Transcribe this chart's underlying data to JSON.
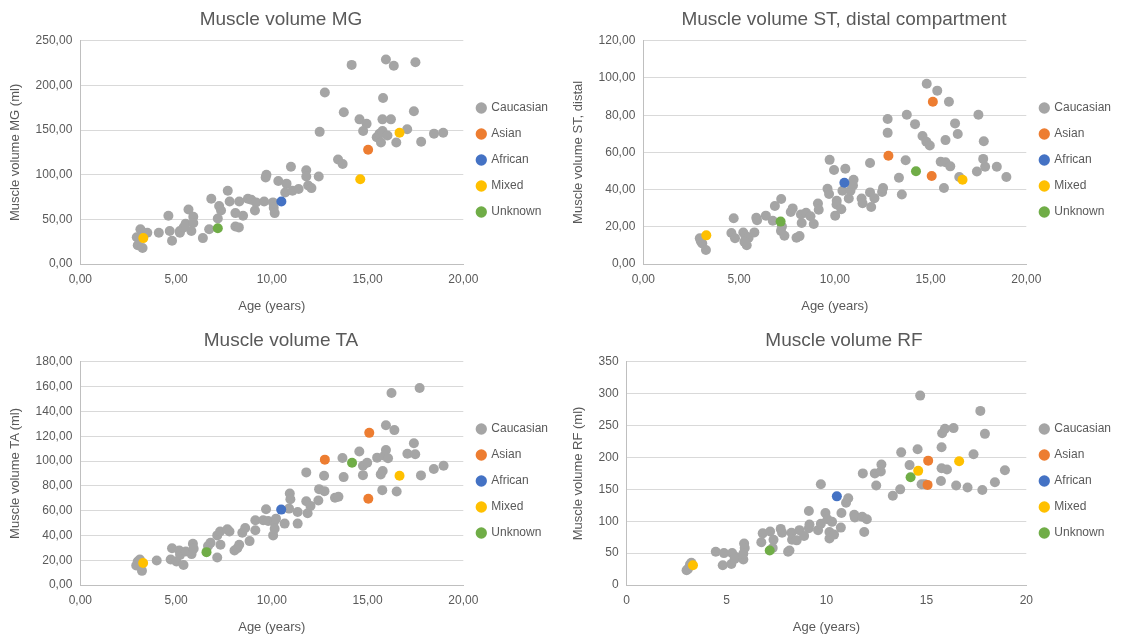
{
  "chart_data": [
    {
      "type": "scatter",
      "title": "Muscle volume MG",
      "xlabel": "Age (years)",
      "ylabel": "Muscle volume MG (ml)",
      "xlim": [
        0,
        20
      ],
      "xticks": [
        {
          "value": 0,
          "label": "0,00"
        },
        {
          "value": 5,
          "label": "5,00"
        },
        {
          "value": 10,
          "label": "10,00"
        },
        {
          "value": 15,
          "label": "15,00"
        },
        {
          "value": 20,
          "label": "20,00"
        }
      ],
      "ylim": [
        0,
        250
      ],
      "yticks": [
        {
          "value": 0,
          "label": "0,00"
        },
        {
          "value": 50,
          "label": "50,00"
        },
        {
          "value": 100,
          "label": "100,00"
        },
        {
          "value": 150,
          "label": "150,00"
        },
        {
          "value": 200,
          "label": "200,00"
        },
        {
          "value": 250,
          "label": "250,00"
        }
      ],
      "grid": "y",
      "legend": "right",
      "marker": "circle",
      "series": [
        {
          "name": "Caucasian",
          "color": "#a5a5a5",
          "x": [
            3.14,
            2.95,
            3.0,
            3.25,
            3.5,
            4.1,
            4.6,
            4.67,
            4.79,
            5.2,
            5.2,
            5.4,
            5.5,
            5.65,
            5.9,
            5.9,
            5.8,
            6.4,
            6.84,
            6.73,
            7.18,
            7.25,
            7.35,
            7.7,
            7.8,
            8.1,
            8.1,
            8.28,
            8.3,
            8.5,
            8.75,
            8.93,
            9.12,
            9.18,
            9.6,
            9.72,
            9.68,
            10.06,
            10.1,
            10.15,
            10.34,
            10.77,
            10.7,
            11.0,
            11.08,
            11.4,
            11.8,
            11.8,
            11.9,
            12.07,
            12.45,
            12.5,
            12.77,
            13.46,
            13.7,
            13.76,
            14.17,
            14.58,
            14.77,
            14.95,
            15.48,
            15.63,
            15.7,
            15.78,
            15.81,
            15.78,
            15.96,
            16.04,
            16.22,
            16.37,
            16.5,
            17.07,
            17.42,
            17.5,
            17.8,
            18.47,
            18.95
          ],
          "values": [
            39,
            30,
            21,
            18,
            35,
            35,
            54,
            37,
            26,
            37,
            35,
            41,
            45,
            61,
            53,
            46,
            37,
            29,
            73,
            39,
            51,
            65,
            60,
            82,
            70,
            57,
            42,
            41,
            70,
            54,
            73,
            72,
            60,
            69,
            70,
            100,
            97,
            69,
            63,
            57,
            93,
            90,
            80,
            109,
            82,
            84,
            105,
            98,
            88,
            85,
            98,
            148,
            192,
            117,
            112,
            170,
            223,
            162,
            149,
            157,
            142,
            146,
            136,
            149,
            186,
            162,
            229,
            144,
            162,
            222,
            136,
            151,
            171,
            226,
            137,
            146,
            147
          ]
        },
        {
          "name": "Asian",
          "color": "#ed7d31",
          "x": [
            15.03
          ],
          "values": [
            128
          ]
        },
        {
          "name": "African",
          "color": "#4472c4",
          "x": [
            10.5
          ],
          "values": [
            70
          ]
        },
        {
          "name": "Mixed",
          "color": "#ffc000",
          "x": [
            3.29,
            14.62,
            16.67
          ],
          "values": [
            29,
            95,
            147
          ]
        },
        {
          "name": "Unknown",
          "color": "#70ad47",
          "x": [
            7.18
          ],
          "values": [
            40
          ]
        }
      ]
    },
    {
      "type": "scatter",
      "title": "Muscle volume ST, distal compartment",
      "xlabel": "Age (years)",
      "ylabel": "Muscle volume ST, distal",
      "xlim": [
        0,
        20
      ],
      "xticks": [
        {
          "value": 0,
          "label": "0,00"
        },
        {
          "value": 5,
          "label": "5,00"
        },
        {
          "value": 10,
          "label": "10,00"
        },
        {
          "value": 15,
          "label": "15,00"
        },
        {
          "value": 20,
          "label": "20,00"
        }
      ],
      "ylim": [
        0,
        120
      ],
      "yticks": [
        {
          "value": 0,
          "label": "0,00"
        },
        {
          "value": 20,
          "label": "20,00"
        },
        {
          "value": 40,
          "label": "40,00"
        },
        {
          "value": 60,
          "label": "60,00"
        },
        {
          "value": 80,
          "label": "80,00"
        },
        {
          "value": 100,
          "label": "100,00"
        },
        {
          "value": 120,
          "label": "120,00"
        }
      ],
      "grid": "y",
      "legend": "right",
      "marker": "circle",
      "series": [
        {
          "name": "Caucasian",
          "color": "#a5a5a5",
          "x": [
            3.0,
            3.08,
            2.95,
            3.27,
            4.6,
            4.72,
            4.79,
            5.22,
            5.33,
            5.5,
            5.4,
            5.28,
            5.8,
            5.9,
            5.94,
            6.4,
            6.76,
            6.87,
            7.2,
            7.24,
            7.19,
            7.37,
            7.7,
            7.8,
            8.0,
            8.16,
            8.23,
            8.27,
            8.5,
            8.73,
            8.9,
            9.12,
            9.16,
            9.73,
            9.96,
            9.62,
            9.7,
            10.02,
            10.09,
            10.1,
            10.34,
            10.4,
            10.55,
            10.73,
            10.82,
            10.95,
            10.98,
            11.4,
            11.45,
            11.84,
            11.84,
            11.9,
            12.07,
            12.47,
            12.52,
            12.76,
            12.76,
            13.35,
            13.5,
            13.7,
            13.76,
            14.19,
            14.58,
            14.78,
            14.96,
            14.8,
            15.35,
            15.96,
            15.53,
            15.78,
            15.7,
            15.78,
            16.03,
            16.28,
            16.42,
            16.5,
            17.5,
            17.42,
            17.78,
            17.75,
            17.85,
            18.46,
            18.96
          ],
          "values": [
            12.3,
            11,
            13.8,
            7.5,
            16.7,
            24.6,
            13.8,
            16.9,
            15.2,
            14.1,
            10.1,
            11.9,
            17,
            24.8,
            23.5,
            26,
            23.3,
            31.2,
            34.9,
            20.2,
            17.8,
            15.2,
            28,
            29.9,
            14.1,
            15,
            26.6,
            22,
            27.5,
            25.7,
            21.5,
            32.5,
            29.2,
            56,
            50.5,
            40.4,
            37.6,
            26,
            32,
            34,
            29.4,
            39.4,
            51.2,
            35.2,
            39.4,
            42.2,
            45.3,
            35.2,
            32.7,
            54.3,
            38.5,
            30.6,
            35.4,
            38.7,
            40.9,
            78,
            70.5,
            46.4,
            37.4,
            55.8,
            80.2,
            75.2,
            68.8,
            65.7,
            63.7,
            96.9,
            93.2,
            87.2,
            55,
            54.7,
            40.9,
            66.6,
            52.5,
            75.6,
            69.9,
            46.8,
            80.2,
            49.7,
            66,
            56.5,
            52.3,
            52.3,
            46.8
          ]
        },
        {
          "name": "Asian",
          "color": "#ed7d31",
          "x": [
            12.8,
            15.06,
            15.12
          ],
          "values": [
            58.2,
            47.3,
            87.2
          ]
        },
        {
          "name": "African",
          "color": "#4472c4",
          "x": [
            10.5
          ],
          "values": [
            43.7
          ]
        },
        {
          "name": "Mixed",
          "color": "#ffc000",
          "x": [
            3.29,
            16.67
          ],
          "values": [
            15.4,
            45.3
          ]
        },
        {
          "name": "Unknown",
          "color": "#70ad47",
          "x": [
            7.17,
            14.24
          ],
          "values": [
            22.8,
            49.9
          ]
        }
      ]
    },
    {
      "type": "scatter",
      "title": "Muscle volume TA",
      "xlabel": "Age (years)",
      "ylabel": "Muscle volume TA (ml)",
      "xlim": [
        0,
        20
      ],
      "xticks": [
        {
          "value": 0,
          "label": "0,00"
        },
        {
          "value": 5,
          "label": "5,00"
        },
        {
          "value": 10,
          "label": "10,00"
        },
        {
          "value": 15,
          "label": "15,00"
        },
        {
          "value": 20,
          "label": "20,00"
        }
      ],
      "ylim": [
        0,
        180
      ],
      "yticks": [
        {
          "value": 0,
          "label": "0,00"
        },
        {
          "value": 20,
          "label": "20,00"
        },
        {
          "value": 40,
          "label": "40,00"
        },
        {
          "value": 60,
          "label": "60,00"
        },
        {
          "value": 80,
          "label": "80,00"
        },
        {
          "value": 100,
          "label": "100,00"
        },
        {
          "value": 120,
          "label": "120,00"
        },
        {
          "value": 140,
          "label": "140,00"
        },
        {
          "value": 160,
          "label": "160,00"
        },
        {
          "value": 180,
          "label": "180,00"
        }
      ],
      "grid": "y",
      "legend": "right",
      "marker": "circle",
      "series": [
        {
          "name": "Caucasian",
          "color": "#a5a5a5",
          "x": [
            3.0,
            2.92,
            3.11,
            3.22,
            3.99,
            4.79,
            4.72,
            5.02,
            5.17,
            5.21,
            5.39,
            5.51,
            5.81,
            5.88,
            5.92,
            6.67,
            6.8,
            7.15,
            7.15,
            7.3,
            7.32,
            7.68,
            7.79,
            8.05,
            8.2,
            8.3,
            8.46,
            8.61,
            8.84,
            9.14,
            9.14,
            9.7,
            9.55,
            9.81,
            10.07,
            10.11,
            10.15,
            10.22,
            10.67,
            10.9,
            10.94,
            10.97,
            11.35,
            11.35,
            11.8,
            11.8,
            11.87,
            12.02,
            12.43,
            12.47,
            12.75,
            12.73,
            13.3,
            13.48,
            13.69,
            13.75,
            14.57,
            14.76,
            14.76,
            14.98,
            15.5,
            15.69,
            15.79,
            15.77,
            15.88,
            15.96,
            15.96,
            16.07,
            16.25,
            16.4,
            16.52,
            17.08,
            17.42,
            17.49,
            17.72,
            17.79,
            18.46,
            18.97
          ],
          "values": [
            18.9,
            15.7,
            20.5,
            11.4,
            19.7,
            29.7,
            20.5,
            18.9,
            27.8,
            24.3,
            16.2,
            27,
            24.9,
            33.2,
            29.2,
            31.4,
            34,
            22.2,
            40,
            43.2,
            32.4,
            44.9,
            43.2,
            27.8,
            29.7,
            32.4,
            42.2,
            45.9,
            35.4,
            52.2,
            44.1,
            61.1,
            52.2,
            51.6,
            40,
            50.8,
            45.4,
            53.5,
            49.5,
            61.6,
            73.8,
            69.2,
            58.9,
            49.5,
            90.8,
            67.6,
            57.8,
            63.8,
            68.1,
            77.3,
            75.7,
            88.1,
            70.3,
            71.1,
            102.4,
            87,
            107.6,
            96.2,
            88.6,
            98.6,
            102.7,
            89.2,
            91.9,
            76.5,
            104.3,
            108.9,
            128.9,
            102.2,
            154.9,
            124.9,
            75.4,
            105.9,
            114.3,
            105.4,
            158.9,
            88.4,
            93.5,
            96.2
          ]
        },
        {
          "name": "Asian",
          "color": "#ed7d31",
          "x": [
            12.77,
            15.09,
            15.04
          ],
          "values": [
            101.1,
            122.7,
            69.5
          ]
        },
        {
          "name": "African",
          "color": "#4472c4",
          "x": [
            10.49
          ],
          "values": [
            60.8
          ]
        },
        {
          "name": "Mixed",
          "color": "#ffc000",
          "x": [
            3.28,
            16.67
          ],
          "values": [
            17.8,
            88.1
          ]
        },
        {
          "name": "Unknown",
          "color": "#70ad47",
          "x": [
            6.59,
            14.19
          ],
          "values": [
            26.5,
            98.6
          ]
        }
      ]
    },
    {
      "type": "scatter",
      "title": "Muscle volume RF",
      "xlabel": "Age (years)",
      "ylabel": "Muscle volume RF (ml)",
      "xlim": [
        0,
        20
      ],
      "xticks": [
        0,
        5,
        10,
        15,
        20
      ],
      "ylim": [
        0,
        350
      ],
      "yticks": [
        0,
        50,
        100,
        150,
        200,
        250,
        300,
        350
      ],
      "grid": "y",
      "legend": "right",
      "marker": "circle",
      "series": [
        {
          "name": "Caucasian",
          "color": "#a5a5a5",
          "x": [
            3.0,
            3.07,
            3.24,
            3.17,
            4.46,
            4.81,
            4.87,
            5.24,
            5.28,
            5.46,
            5.41,
            5.84,
            5.88,
            5.91,
            5.84,
            6.74,
            6.81,
            7.18,
            7.35,
            7.31,
            7.71,
            7.78,
            8.08,
            8.15,
            8.25,
            8.28,
            8.51,
            8.65,
            8.88,
            9.12,
            9.15,
            9.12,
            9.58,
            9.72,
            9.72,
            9.95,
            10.05,
            10.15,
            10.15,
            10.28,
            10.38,
            10.72,
            10.75,
            10.98,
            11.09,
            11.39,
            11.42,
            11.79,
            11.89,
            12.02,
            11.82,
            12.42,
            12.49,
            12.72,
            12.75,
            13.32,
            13.69,
            13.74,
            14.16,
            14.56,
            14.69,
            14.76,
            14.93,
            15.73,
            15.76,
            15.76,
            15.79,
            15.93,
            16.03,
            16.36,
            16.49,
            17.06,
            17.36,
            17.7,
            17.8,
            17.93,
            18.43,
            18.93
          ],
          "values": [
            23,
            25,
            35,
            32,
            52,
            31,
            50,
            33,
            50,
            44,
            41,
            40,
            65,
            58,
            49,
            67,
            81,
            84,
            71,
            58,
            88,
            82,
            52,
            54,
            82,
            71,
            70,
            86,
            77,
            89,
            95,
            116,
            86,
            158,
            96,
            113,
            103,
            83,
            73,
            99,
            79,
            90,
            113,
            129,
            136,
            110,
            106,
            107,
            83,
            103,
            175,
            175,
            156,
            178,
            189,
            140,
            150,
            208,
            188,
            213,
            297,
            158,
            158,
            163,
            216,
            183,
            238,
            245,
            181,
            246,
            156,
            153,
            205,
            273,
            149,
            237,
            161,
            180
          ]
        },
        {
          "name": "Asian",
          "color": "#ed7d31",
          "x": [
            15.06,
            15.09
          ],
          "values": [
            157,
            195
          ]
        },
        {
          "name": "African",
          "color": "#4472c4",
          "x": [
            10.52
          ],
          "values": [
            139
          ]
        },
        {
          "name": "Mixed",
          "color": "#ffc000",
          "x": [
            3.32,
            14.59,
            16.64
          ],
          "values": [
            31,
            179,
            194
          ]
        },
        {
          "name": "Unknown",
          "color": "#70ad47",
          "x": [
            7.16,
            14.21
          ],
          "values": [
            54,
            169
          ]
        }
      ]
    }
  ]
}
